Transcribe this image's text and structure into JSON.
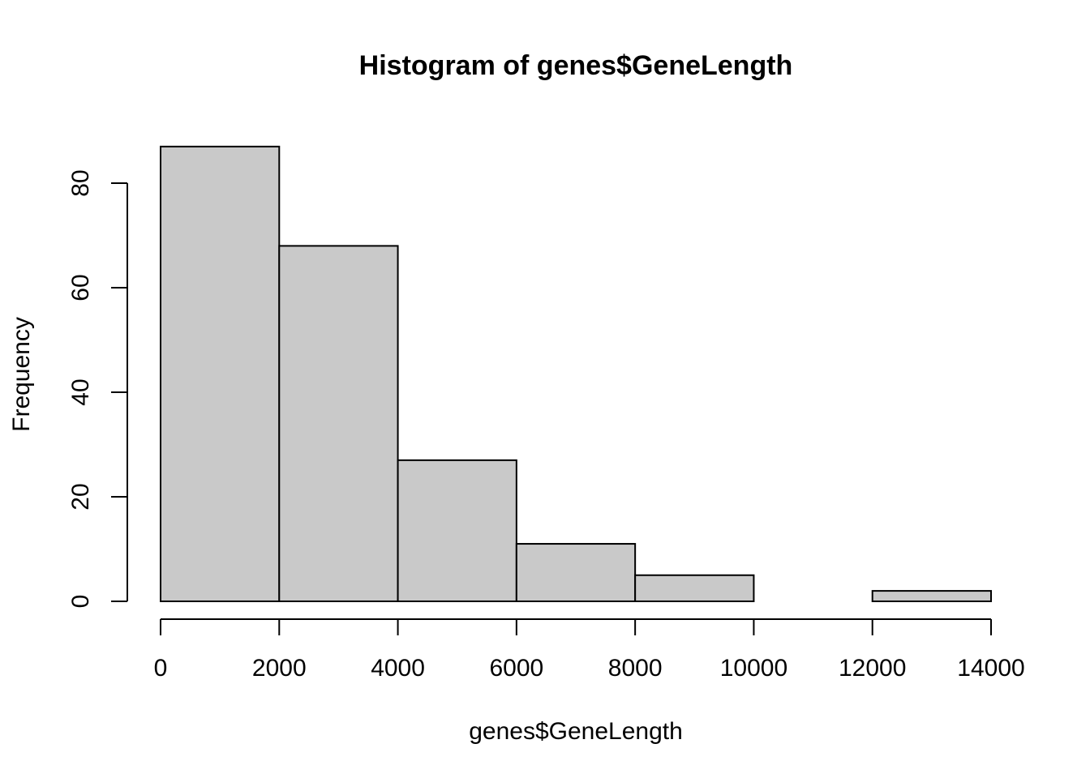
{
  "chart_data": {
    "type": "bar",
    "subtype": "histogram",
    "title": "Histogram of genes$GeneLength",
    "xlabel": "genes$GeneLength",
    "ylabel": "Frequency",
    "bins": [
      {
        "start": 0,
        "end": 2000,
        "count": 87
      },
      {
        "start": 2000,
        "end": 4000,
        "count": 68
      },
      {
        "start": 4000,
        "end": 6000,
        "count": 27
      },
      {
        "start": 6000,
        "end": 8000,
        "count": 11
      },
      {
        "start": 8000,
        "end": 10000,
        "count": 5
      },
      {
        "start": 10000,
        "end": 12000,
        "count": 0
      },
      {
        "start": 12000,
        "end": 14000,
        "count": 2
      }
    ],
    "xlim": [
      0,
      14000
    ],
    "ylim": [
      0,
      87
    ],
    "x_ticks": [
      "0",
      "2000",
      "4000",
      "6000",
      "8000",
      "10000",
      "12000",
      "14000"
    ],
    "y_ticks": [
      "0",
      "20",
      "40",
      "60",
      "80"
    ],
    "bar_color": "#c9c9c9",
    "grid": false,
    "legend": "none"
  }
}
